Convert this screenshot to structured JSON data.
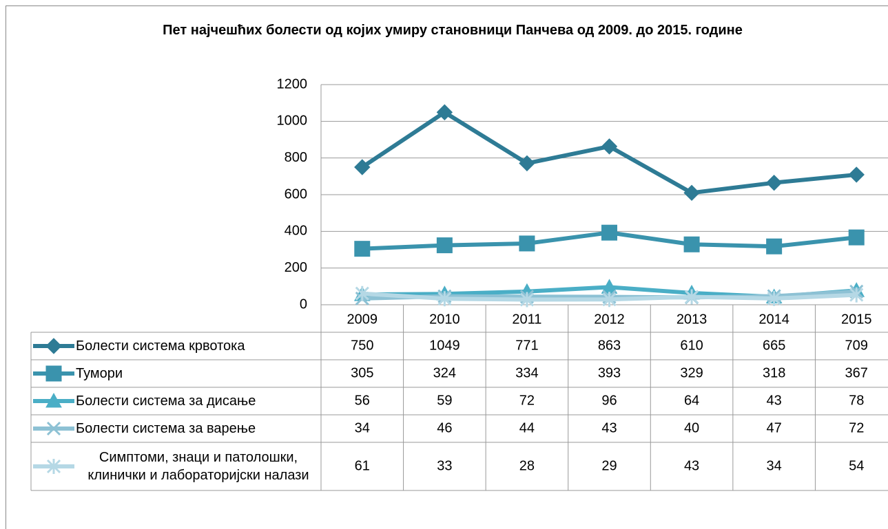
{
  "chart_data": {
    "type": "line",
    "title": "Пет најчешћих болести од којих умиру становници Панчева од 2009. до 2015. године",
    "categories": [
      "2009",
      "2010",
      "2011",
      "2012",
      "2013",
      "2014",
      "2015"
    ],
    "series": [
      {
        "name": "Болести система крвотока",
        "color": "#2e7b95",
        "marker": "diamond",
        "values": [
          750,
          1049,
          771,
          863,
          610,
          665,
          709
        ]
      },
      {
        "name": "Тумори",
        "color": "#3a93ad",
        "marker": "square",
        "values": [
          305,
          324,
          334,
          393,
          329,
          318,
          367
        ]
      },
      {
        "name": "Болести система за дисање",
        "color": "#4aaec6",
        "marker": "triangle",
        "values": [
          56,
          59,
          72,
          96,
          64,
          43,
          78
        ]
      },
      {
        "name": "Болести система за варење",
        "color": "#8dc1d4",
        "marker": "x",
        "values": [
          34,
          46,
          44,
          43,
          40,
          47,
          72
        ]
      },
      {
        "name": "Симптоми, знаци и патолошки, клинички и лабораторијски налази",
        "color": "#b5d8e5",
        "marker": "star",
        "values": [
          61,
          33,
          28,
          29,
          43,
          34,
          54
        ]
      }
    ],
    "ylim": [
      0,
      1200
    ],
    "yticks": [
      0,
      200,
      400,
      600,
      800,
      1000,
      1200
    ],
    "grid": true,
    "data_table": true
  }
}
